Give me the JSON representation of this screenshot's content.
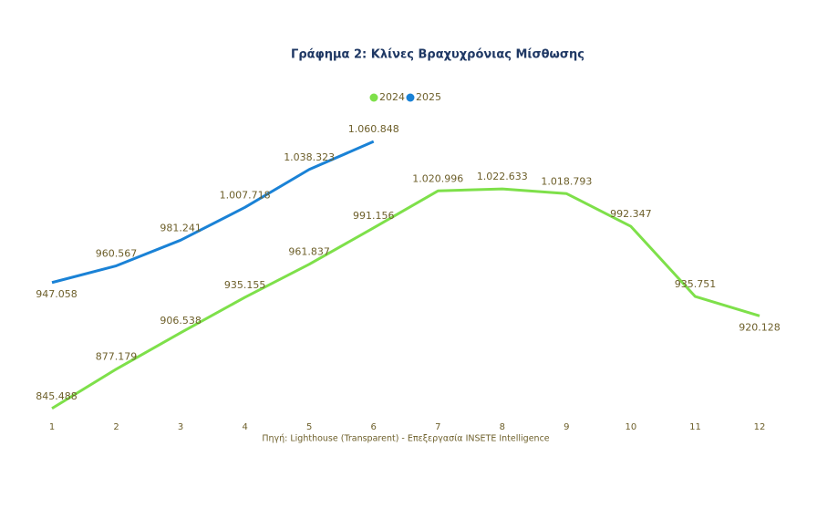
{
  "chart_data": {
    "type": "line",
    "title": "Γράφημα 2: Κλίνες Βραχυχρόνιας Μίσθωσης",
    "source": "Πηγή: Lighthouse (Transparent) - Επεξεργασία INSETE Intelligence",
    "categories": [
      "1",
      "2",
      "3",
      "4",
      "5",
      "6",
      "7",
      "8",
      "9",
      "10",
      "11",
      "12"
    ],
    "series": [
      {
        "name": "2024",
        "color": "#7ee04a",
        "values": [
          845488,
          877179,
          906538,
          935155,
          961837,
          991156,
          1020996,
          1022633,
          1018793,
          992347,
          935751,
          920128
        ],
        "value_labels": [
          "845.488",
          "877.179",
          "906.538",
          "935.155",
          "961.837",
          "991.156",
          "1.020.996",
          "1.022.633",
          "1.018.793",
          "992.347",
          "935.751",
          "920.128"
        ]
      },
      {
        "name": "2025",
        "color": "#1a82d6",
        "values": [
          947058,
          960567,
          981241,
          1007718,
          1038323,
          1060848,
          null,
          null,
          null,
          null,
          null,
          null
        ],
        "value_labels": [
          "947.058",
          "960.567",
          "981.241",
          "1.007.718",
          "1.038.323",
          "1.060.848",
          null,
          null,
          null,
          null,
          null,
          null
        ]
      }
    ],
    "ylim": [
      835000,
      1072000
    ],
    "legend": "top"
  }
}
